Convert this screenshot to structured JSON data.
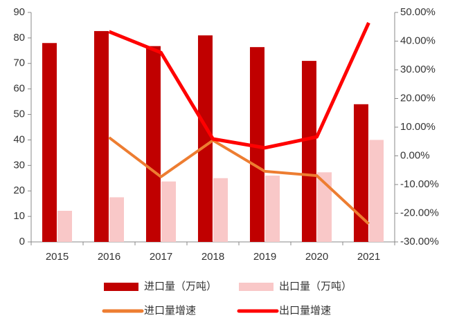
{
  "chart_data": {
    "type": "bar_line",
    "categories": [
      "2015",
      "2016",
      "2017",
      "2018",
      "2019",
      "2020",
      "2021"
    ],
    "series": [
      {
        "name": "进口量（万吨）",
        "type": "bar",
        "color": "#C00000",
        "values": [
          78,
          82.7,
          76.8,
          81,
          76.4,
          71,
          54
        ]
      },
      {
        "name": "出口量（万吨）",
        "type": "bar",
        "color": "#F9C8C8",
        "values": [
          12.2,
          17.5,
          23.7,
          25,
          26,
          27.3,
          40
        ]
      },
      {
        "name": "进口量增速",
        "type": "line",
        "axis": "y2",
        "color": "#ED7D31",
        "values": [
          null,
          6.4,
          -7.3,
          5.4,
          -5.4,
          -6.9,
          -23.7
        ]
      },
      {
        "name": "出口量增速",
        "type": "line",
        "axis": "y2",
        "color": "#FF0000",
        "values": [
          null,
          43.3,
          36,
          5.9,
          2.8,
          6.6,
          46.4
        ]
      }
    ],
    "ylim": [
      0,
      90
    ],
    "yticks": [
      0,
      10,
      20,
      30,
      40,
      50,
      60,
      70,
      80,
      90
    ],
    "y2lim": [
      -30,
      50
    ],
    "y2ticks": [
      {
        "value": -30,
        "label": "-30.00%"
      },
      {
        "value": -20,
        "label": "-20.00%"
      },
      {
        "value": -10,
        "label": "-10.00%"
      },
      {
        "value": 0,
        "label": "0.00%"
      },
      {
        "value": 10,
        "label": "10.00%"
      },
      {
        "value": 20,
        "label": "20.00%"
      },
      {
        "value": 30,
        "label": "30.00%"
      },
      {
        "value": 40,
        "label": "40.00%"
      },
      {
        "value": 50,
        "label": "50.00%"
      }
    ],
    "legend": "bottom"
  }
}
